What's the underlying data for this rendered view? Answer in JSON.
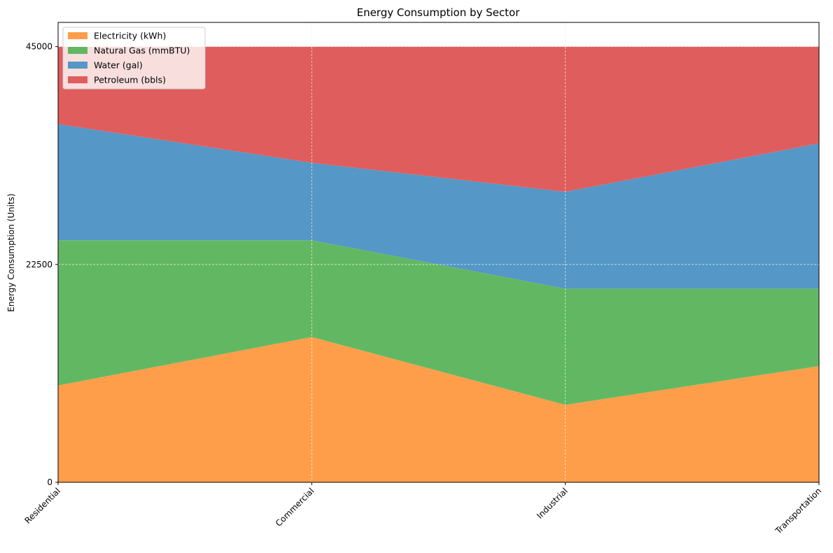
{
  "chart_data": {
    "type": "area",
    "stacked": true,
    "title": "Energy Consumption by Sector",
    "xlabel": "",
    "ylabel": "Energy Consumption (Units)",
    "categories": [
      "Residential",
      "Commercial",
      "Industrial",
      "Transportation"
    ],
    "ylim": [
      0,
      47500
    ],
    "yticks": [
      0,
      22500,
      45000
    ],
    "ytick_labels": [
      "0",
      "22500",
      "45000"
    ],
    "grid": true,
    "legend_position": "top-left",
    "series": [
      {
        "name": "Electricity (kWh)",
        "color": "#ff9e4a",
        "values": [
          10000,
          15000,
          8000,
          12000
        ]
      },
      {
        "name": "Natural Gas (mmBTU)",
        "color": "#62b862",
        "values": [
          15000,
          10000,
          12000,
          8000
        ]
      },
      {
        "name": "Water (gal)",
        "color": "#5597c6",
        "values": [
          12000,
          8000,
          10000,
          15000
        ]
      },
      {
        "name": "Petroleum (bbls)",
        "color": "#e05d5d",
        "values": [
          8000,
          12000,
          15000,
          10000
        ]
      }
    ]
  }
}
